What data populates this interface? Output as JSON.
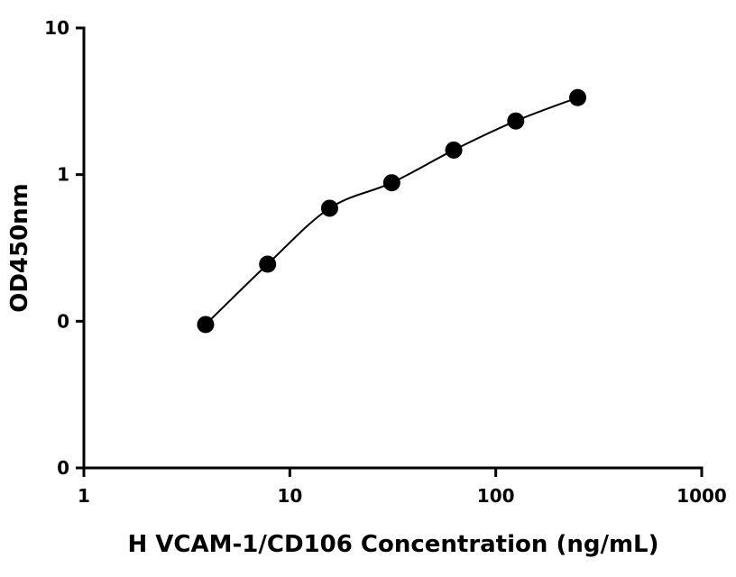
{
  "chart_data": {
    "type": "scatter",
    "title": "",
    "xlabel": "H VCAM-1/CD106 Concentration (ng/mL)",
    "ylabel": "OD450nm",
    "xscale": "log",
    "yscale": "log",
    "xlim": [
      1,
      1000
    ],
    "ylim": [
      0.01,
      10
    ],
    "grid": false,
    "legend": "none",
    "x_ticks": [
      1,
      10,
      100,
      1000
    ],
    "x_tick_labels": [
      "1",
      "10",
      "100",
      "1000"
    ],
    "y_ticks": [
      0.01,
      0.1,
      1,
      10
    ],
    "y_tick_labels": [
      "0",
      "0",
      "1",
      "10"
    ],
    "series": [
      {
        "x": [
          3.9,
          7.8,
          15.6,
          31.25,
          62.5,
          125,
          250
        ],
        "y": [
          0.095,
          0.245,
          0.59,
          0.88,
          1.47,
          2.32,
          3.35
        ],
        "marker": "filled-circle",
        "color": "#000000",
        "fit_line": true
      }
    ]
  }
}
